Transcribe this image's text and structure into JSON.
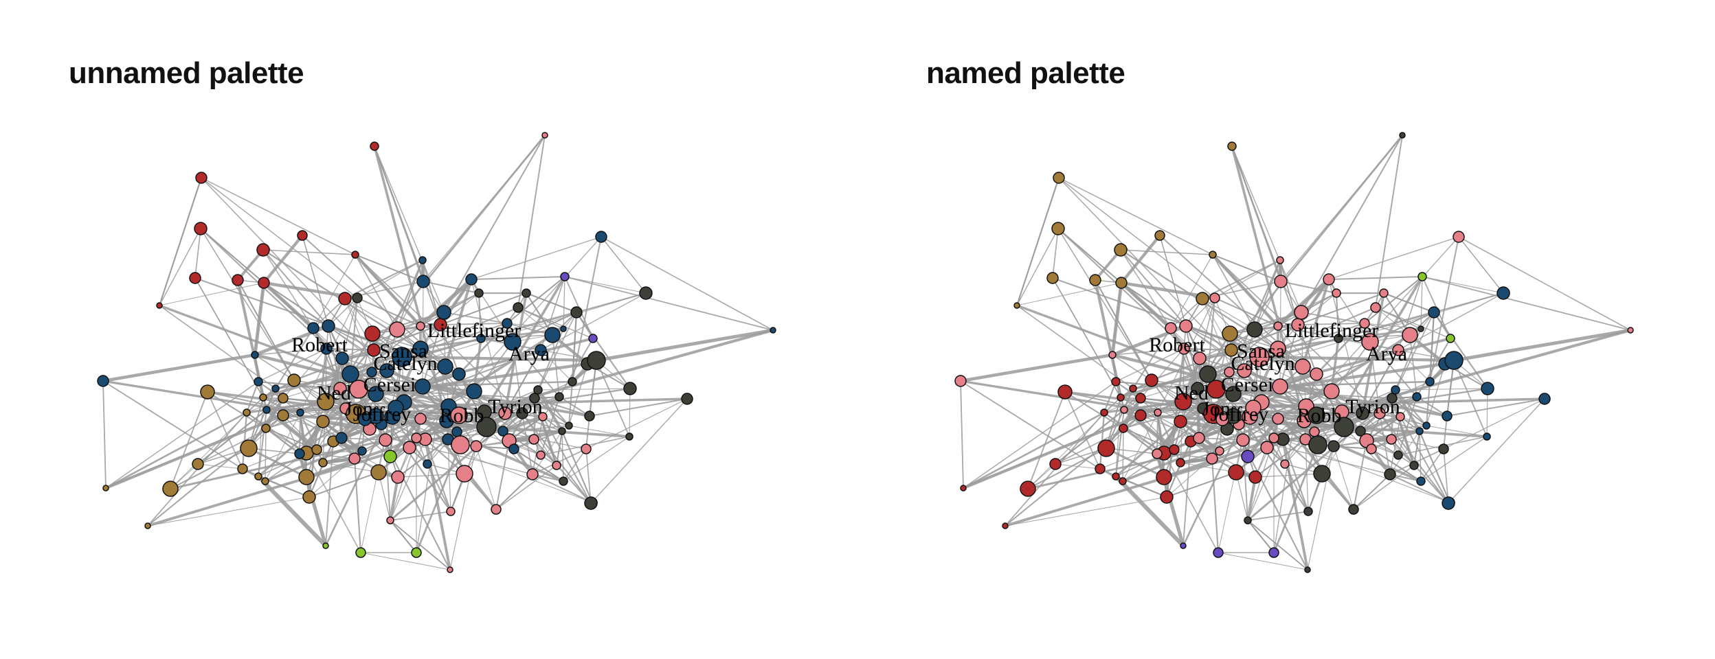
{
  "panels": [
    {
      "id": "left",
      "title": "unnamed palette"
    },
    {
      "id": "right",
      "title": "named palette"
    }
  ],
  "labels": [
    "Robert",
    "Sansa",
    "Littlefinger",
    "Arya",
    "Catelyn",
    "Cersei",
    "Ned",
    "Jon",
    "Joffrey",
    "Robb",
    "Tyrion"
  ],
  "colors": {
    "red": "#b22a2a",
    "pink": "#e58088",
    "navy": "#1a4a70",
    "olive": "#a07a36",
    "dark": "#3c4036",
    "lime": "#86c62a",
    "purple": "#6a4cc2",
    "edge": "#9a9a9a"
  }
}
